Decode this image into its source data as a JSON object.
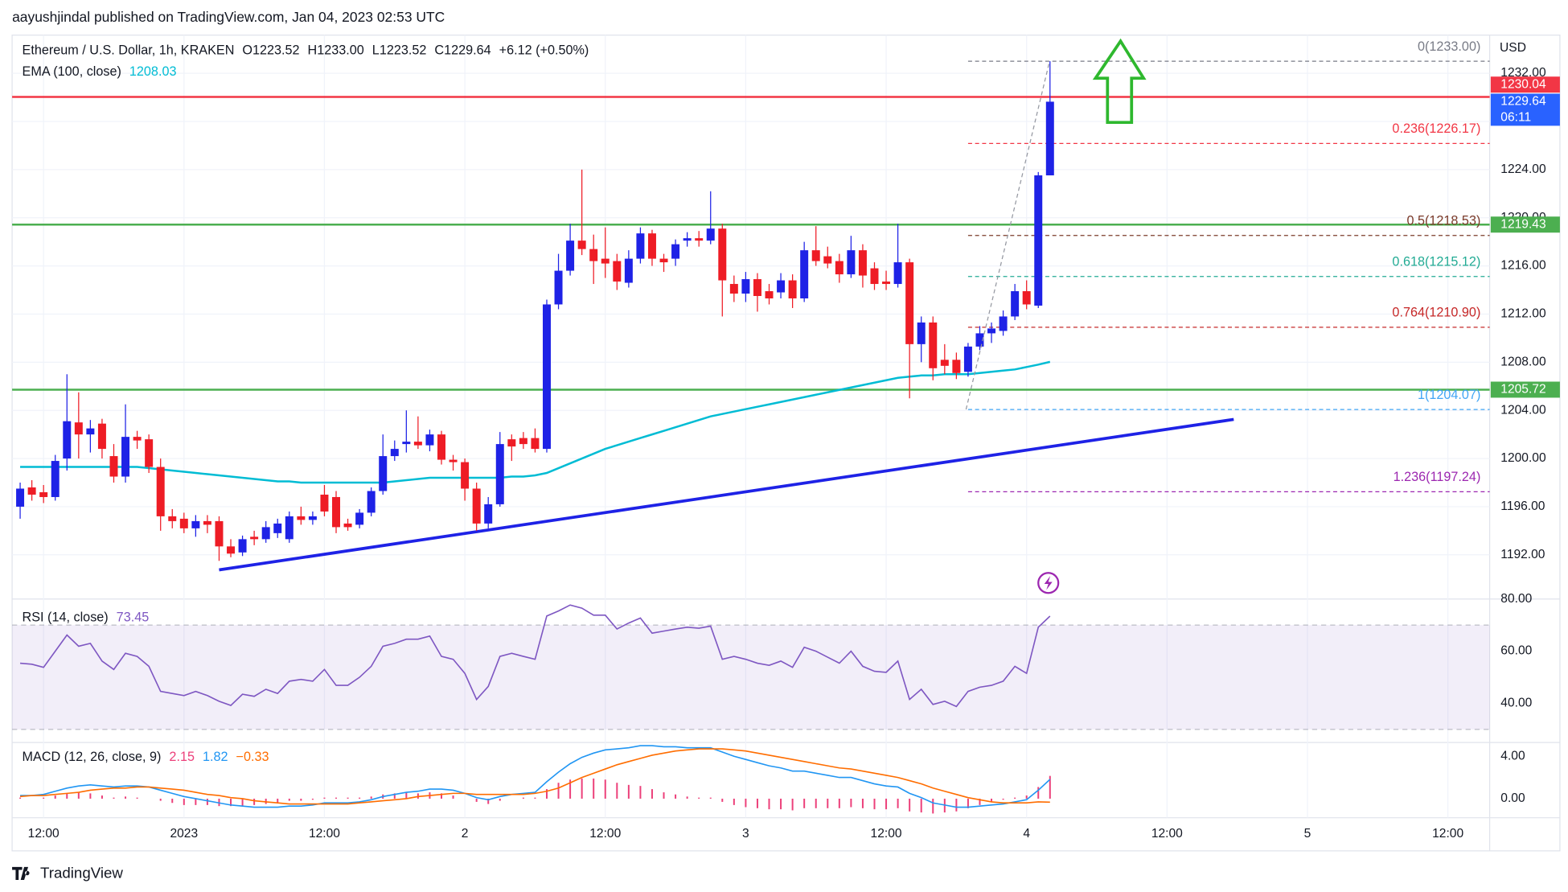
{
  "header": {
    "text": "aayushjindal published on TradingView.com, Jan 04, 2023 02:53 UTC"
  },
  "footer": {
    "brand": "TradingView"
  },
  "chart_data": {
    "type": "candlestick",
    "title": "Ethereum / U.S. Dollar, 1h, KRAKEN",
    "ohlc_legend": [
      "O1223.52",
      "H1233.00",
      "L1223.52",
      "C1229.64",
      "+6.12 (+0.50%)"
    ],
    "currency": "USD",
    "xlim": [
      -0.686,
      125.57
    ],
    "xticks": [
      {
        "value": 2,
        "label": "12:00"
      },
      {
        "value": 14,
        "label": "2023"
      },
      {
        "value": 26,
        "label": "12:00"
      },
      {
        "value": 38,
        "label": "2"
      },
      {
        "value": 50,
        "label": "12:00"
      },
      {
        "value": 62,
        "label": "3"
      },
      {
        "value": 74,
        "label": "12:00"
      },
      {
        "value": 86,
        "label": "4"
      },
      {
        "value": 98,
        "label": "12:00"
      },
      {
        "value": 110,
        "label": "5"
      },
      {
        "value": 122,
        "label": "12:00"
      }
    ],
    "ylim": [
      1188.33,
      1235.17
    ],
    "yticks": [
      {
        "value": 1192,
        "label": "1192.00"
      },
      {
        "value": 1196,
        "label": "1196.00"
      },
      {
        "value": 1200,
        "label": "1200.00"
      },
      {
        "value": 1204,
        "label": "1204.00"
      },
      {
        "value": 1208,
        "label": "1208.00"
      },
      {
        "value": 1212,
        "label": "1212.00"
      },
      {
        "value": 1216,
        "label": "1216.00"
      },
      {
        "value": 1220,
        "label": "1220.00"
      },
      {
        "value": 1224,
        "label": "1224.00"
      },
      {
        "value": 1228,
        "label": "1228.00"
      },
      {
        "value": 1232,
        "label": "1232.00"
      }
    ],
    "grid": true,
    "up_color": "#1e22e6",
    "down_color": "#ee1c25",
    "open": [
      1196,
      1197.6,
      1197.2,
      1196.8,
      1200,
      1203,
      1202,
      1202.9,
      1200.2,
      1198.5,
      1201.8,
      1201.6,
      1199.3,
      1195.2,
      1195,
      1194.2,
      1194.8,
      1194.8,
      1192.7,
      1192.2,
      1193.5,
      1193.3,
      1193.8,
      1193.3,
      1195.2,
      1194.9,
      1197,
      1196.8,
      1194.6,
      1194.5,
      1195.5,
      1197.3,
      1200.2,
      1201.2,
      1201.4,
      1201.1,
      1202,
      1199.9,
      1199.7,
      1197.5,
      1194.6,
      1196.2,
      1201.6,
      1201.7,
      1201.7,
      1200.8,
      1212.8,
      1215.6,
      1218.1,
      1217.4,
      1216.6,
      1216.4,
      1214.6,
      1216.6,
      1218.7,
      1216.6,
      1216.6,
      1218.1,
      1218.3,
      1218.1,
      1219.1,
      1214.5,
      1213.7,
      1214.9,
      1213.9,
      1213.8,
      1214.8,
      1213.3,
      1217.3,
      1216.8,
      1216.4,
      1215.3,
      1217.3,
      1215.8,
      1214.7,
      1214.5,
      1216.3,
      1209.5,
      1211.3,
      1208.2,
      1208.2,
      1207.2,
      1209.3,
      1210.4,
      1210.6,
      1211.8,
      1213.9,
      1212.7,
      1223.52
    ],
    "high": [
      1198,
      1198.2,
      1197.8,
      1200.3,
      1207,
      1205.5,
      1203.2,
      1203.3,
      1201.2,
      1204.5,
      1202.3,
      1202,
      1200,
      1195.8,
      1195.5,
      1195.3,
      1195.3,
      1195.2,
      1193.3,
      1193.6,
      1194,
      1194.8,
      1195,
      1195.6,
      1196,
      1195.6,
      1197.8,
      1197.3,
      1195,
      1195.8,
      1197.6,
      1202,
      1201.5,
      1204,
      1203.5,
      1202.4,
      1202.3,
      1200.3,
      1200,
      1198,
      1196.8,
      1202.2,
      1202,
      1202.2,
      1202.5,
      1213.2,
      1217,
      1219.5,
      1224,
      1218.6,
      1219.2,
      1217,
      1217.3,
      1219.2,
      1219,
      1217,
      1218.2,
      1218.8,
      1218.9,
      1222.2,
      1219.5,
      1215.2,
      1215.5,
      1215.4,
      1214.5,
      1215.4,
      1215.3,
      1218,
      1219.3,
      1217.6,
      1217,
      1218.5,
      1217.8,
      1216.3,
      1215.6,
      1219.5,
      1216.6,
      1211.8,
      1211.8,
      1209.5,
      1208.8,
      1209.6,
      1211,
      1211.3,
      1212.3,
      1214.5,
      1214.8,
      1223.8,
      1233
    ],
    "low": [
      1195,
      1196.5,
      1196.3,
      1196.5,
      1199,
      1200,
      1200.5,
      1200,
      1198,
      1198,
      1200.8,
      1198.8,
      1194,
      1194.2,
      1193.8,
      1193.5,
      1193.8,
      1191.5,
      1191.8,
      1191.9,
      1192.8,
      1193,
      1193.4,
      1193,
      1194.5,
      1194.5,
      1195.2,
      1193.8,
      1194,
      1194.2,
      1195.2,
      1197,
      1199.8,
      1200.5,
      1200.8,
      1200.6,
      1199.5,
      1199,
      1196.5,
      1194,
      1194.2,
      1196,
      1199.8,
      1200.8,
      1200.5,
      1200.5,
      1212.4,
      1215.2,
      1216.9,
      1214.5,
      1215,
      1214,
      1214.2,
      1216.2,
      1216,
      1215.5,
      1216,
      1217.6,
      1217.6,
      1217.8,
      1211.8,
      1213,
      1213,
      1212.2,
      1212.8,
      1213.3,
      1212.5,
      1213,
      1216,
      1215.8,
      1214.6,
      1215,
      1214.2,
      1214,
      1214,
      1214.2,
      1205,
      1208,
      1206.5,
      1207,
      1206.6,
      1206.8,
      1209,
      1209.6,
      1210.2,
      1211.5,
      1212.4,
      1212.5,
      1223.52
    ],
    "close": [
      1197.5,
      1197,
      1196.8,
      1199.8,
      1203.1,
      1202,
      1202.5,
      1200.8,
      1198.5,
      1201.8,
      1201.5,
      1199.3,
      1195.2,
      1194.8,
      1194.2,
      1194.8,
      1194.5,
      1192.7,
      1192.1,
      1193.3,
      1193.3,
      1194.3,
      1194.6,
      1195.2,
      1194.9,
      1195.2,
      1195.6,
      1194.3,
      1194.3,
      1195.5,
      1197.3,
      1200.2,
      1200.8,
      1201.4,
      1201.1,
      1202,
      1199.9,
      1199.7,
      1197.5,
      1194.6,
      1196.2,
      1201.2,
      1201,
      1201.2,
      1200.8,
      1212.8,
      1215.6,
      1218.1,
      1217.4,
      1216.4,
      1216.2,
      1214.7,
      1216.6,
      1218.7,
      1216.6,
      1216.3,
      1217.8,
      1218.3,
      1218.1,
      1219.1,
      1214.8,
      1213.7,
      1214.9,
      1213.5,
      1213.3,
      1214.8,
      1213.3,
      1217.3,
      1216.4,
      1216.2,
      1215.3,
      1217.3,
      1215.2,
      1214.5,
      1214.5,
      1216.3,
      1209.5,
      1211.3,
      1207.5,
      1207.7,
      1207.1,
      1209.3,
      1210.4,
      1210.8,
      1211.8,
      1213.9,
      1212.8,
      1223.52,
      1229.64
    ],
    "ema": {
      "name": "EMA (100, close)",
      "color": "#00bcd4",
      "values": [
        1199.3,
        1199.3,
        1199.3,
        1199.3,
        1199.3,
        1199.3,
        1199.3,
        1199.3,
        1199.3,
        1199.3,
        1199.3,
        1199.2,
        1199.1,
        1199.0,
        1198.9,
        1198.8,
        1198.7,
        1198.6,
        1198.5,
        1198.4,
        1198.3,
        1198.2,
        1198.1,
        1198.1,
        1198.0,
        1198.0,
        1198.0,
        1198.0,
        1198.0,
        1198.0,
        1198.0,
        1198.0,
        1198.1,
        1198.2,
        1198.3,
        1198.4,
        1198.4,
        1198.4,
        1198.4,
        1198.4,
        1198.4,
        1198.4,
        1198.5,
        1198.5,
        1198.6,
        1198.8,
        1199.2,
        1199.6,
        1200.0,
        1200.4,
        1200.8,
        1201.1,
        1201.4,
        1201.7,
        1202.0,
        1202.3,
        1202.6,
        1202.9,
        1203.2,
        1203.5,
        1203.7,
        1203.9,
        1204.1,
        1204.3,
        1204.5,
        1204.7,
        1204.9,
        1205.1,
        1205.3,
        1205.5,
        1205.7,
        1205.9,
        1206.1,
        1206.3,
        1206.5,
        1206.7,
        1206.8,
        1206.9,
        1206.9,
        1207.0,
        1207.0,
        1207.0,
        1207.1,
        1207.2,
        1207.3,
        1207.4,
        1207.6,
        1207.8,
        1208.03
      ]
    },
    "price_lines": [
      {
        "value": 1230.04,
        "color": "#f23645"
      },
      {
        "value": 1219.43,
        "color": "#4caf50"
      },
      {
        "value": 1205.72,
        "color": "#4caf50"
      }
    ],
    "last_price": {
      "value": 1229.64,
      "countdown": "06:11",
      "color": "#2962ff"
    },
    "fib": {
      "from_index": 81,
      "levels": [
        {
          "label": "0(1233.00)",
          "value": 1233,
          "color": "#787b86"
        },
        {
          "label": "0.236(1226.17)",
          "value": 1226.17,
          "color": "#f23645"
        },
        {
          "label": "0.5(1218.53)",
          "value": 1218.53,
          "color": "#7b3b2a"
        },
        {
          "label": "0.618(1215.12)",
          "value": 1215.12,
          "color": "#22ab94"
        },
        {
          "label": "0.764(1210.90)",
          "value": 1210.9,
          "color": "#c62828"
        },
        {
          "label": "1(1204.07)",
          "value": 1204.07,
          "color": "#42a5f5"
        },
        {
          "label": "1.236(1197.24)",
          "value": 1197.24,
          "color": "#9c27b0"
        }
      ]
    },
    "trendline": {
      "points": [
        [
          17,
          1190.75
        ],
        [
          103.7,
          1203.25
        ]
      ],
      "color": "#1e22e6"
    },
    "rsi": {
      "name": "RSI (14, close)",
      "color": "#7e57c2",
      "ylim": [
        25,
        80
      ],
      "band": [
        30,
        70
      ],
      "yticks": [
        {
          "value": 40,
          "label": "40.00"
        },
        {
          "value": 60,
          "label": "60.00"
        },
        {
          "value": 80,
          "label": "80.00"
        }
      ],
      "values": [
        55.4,
        55,
        53.8,
        60,
        66.2,
        61.9,
        63,
        56.2,
        53,
        59.2,
        58,
        54.2,
        44.6,
        43.8,
        43,
        44.6,
        43,
        40.8,
        39.2,
        43.5,
        42.7,
        45.4,
        43.8,
        48.5,
        49.2,
        48.5,
        53,
        46.9,
        46.9,
        50,
        54.2,
        61.9,
        63,
        64.6,
        64.6,
        65.8,
        58,
        56.9,
        51.5,
        41.5,
        46.5,
        58,
        59.2,
        58,
        56.9,
        73.5,
        75.4,
        77.7,
        76.5,
        73.8,
        73.8,
        68.5,
        70.8,
        72.7,
        66.9,
        67.7,
        68.5,
        69.2,
        68.8,
        69.6,
        56.9,
        58,
        56.9,
        55.4,
        54.6,
        56.2,
        53.8,
        61.5,
        60,
        57.7,
        55.4,
        60,
        54.2,
        52.3,
        51.9,
        56.2,
        41.5,
        45.4,
        39.6,
        40.8,
        38.8,
        44.6,
        46.2,
        46.9,
        48.5,
        54.2,
        51.5,
        69.2,
        73.45
      ]
    },
    "macd": {
      "name": "MACD (12, 26, close, 9)",
      "ylim": [
        -1.8,
        5.3
      ],
      "yticks": [
        {
          "value": 0,
          "label": "0.00"
        },
        {
          "value": 4,
          "label": "4.00"
        }
      ],
      "histogram": {
        "color": "#ec407a",
        "values": [
          0.1,
          0.0,
          0.1,
          0.3,
          0.5,
          0.6,
          0.5,
          0.3,
          0.1,
          0.2,
          0.1,
          0.0,
          -0.2,
          -0.4,
          -0.6,
          -0.6,
          -0.6,
          -0.7,
          -0.7,
          -0.7,
          -0.6,
          -0.5,
          -0.4,
          -0.2,
          -0.2,
          -0.1,
          0.1,
          0.1,
          0.1,
          0.1,
          0.2,
          0.4,
          0.5,
          0.6,
          0.5,
          0.6,
          0.5,
          0.3,
          0.0,
          -0.3,
          -0.5,
          -0.2,
          0.0,
          0.1,
          0.1,
          0.9,
          1.5,
          1.8,
          1.9,
          1.9,
          1.8,
          1.5,
          1.3,
          1.2,
          0.9,
          0.6,
          0.4,
          0.2,
          0.1,
          0.1,
          -0.3,
          -0.6,
          -0.8,
          -0.9,
          -1.0,
          -1.0,
          -1.1,
          -0.9,
          -0.9,
          -0.9,
          -0.9,
          -0.8,
          -0.9,
          -1.0,
          -1.0,
          -0.9,
          -1.2,
          -1.3,
          -1.4,
          -1.3,
          -1.2,
          -0.9,
          -0.6,
          -0.3,
          -0.1,
          0.1,
          0.3,
          1.1,
          2.15
        ]
      },
      "macd": {
        "color": "#2196f3",
        "values": [
          0.3,
          0.3,
          0.4,
          0.7,
          1.0,
          1.2,
          1.3,
          1.2,
          1.1,
          1.2,
          1.2,
          1.1,
          0.8,
          0.5,
          0.2,
          0.0,
          -0.2,
          -0.4,
          -0.6,
          -0.7,
          -0.8,
          -0.8,
          -0.8,
          -0.7,
          -0.7,
          -0.6,
          -0.4,
          -0.4,
          -0.4,
          -0.3,
          -0.1,
          0.2,
          0.4,
          0.6,
          0.7,
          0.9,
          0.9,
          0.8,
          0.5,
          0.1,
          -0.1,
          0.2,
          0.4,
          0.5,
          0.6,
          1.6,
          2.5,
          3.3,
          3.9,
          4.3,
          4.6,
          4.7,
          4.8,
          5.0,
          5.0,
          4.9,
          4.9,
          4.8,
          4.8,
          4.8,
          4.4,
          4.0,
          3.7,
          3.4,
          3.1,
          2.9,
          2.6,
          2.6,
          2.4,
          2.2,
          2.0,
          2.0,
          1.7,
          1.4,
          1.2,
          1.1,
          0.5,
          0.1,
          -0.4,
          -0.6,
          -0.8,
          -0.8,
          -0.7,
          -0.6,
          -0.5,
          -0.3,
          -0.1,
          0.8,
          1.82
        ]
      },
      "signal": {
        "color": "#ff6d00",
        "legend_label": "−0.33",
        "values": [
          0.2,
          0.3,
          0.3,
          0.4,
          0.5,
          0.6,
          0.8,
          0.9,
          1.0,
          1.0,
          1.1,
          1.1,
          1.0,
          0.9,
          0.8,
          0.6,
          0.4,
          0.3,
          0.1,
          0.0,
          -0.2,
          -0.3,
          -0.4,
          -0.5,
          -0.5,
          -0.5,
          -0.5,
          -0.5,
          -0.5,
          -0.4,
          -0.3,
          -0.2,
          -0.1,
          0.0,
          0.2,
          0.3,
          0.4,
          0.5,
          0.5,
          0.4,
          0.4,
          0.4,
          0.4,
          0.4,
          0.5,
          0.7,
          1.0,
          1.5,
          2.0,
          2.4,
          2.8,
          3.2,
          3.5,
          3.8,
          4.1,
          4.3,
          4.5,
          4.6,
          4.7,
          4.7,
          4.7,
          4.6,
          4.5,
          4.3,
          4.1,
          3.9,
          3.7,
          3.5,
          3.3,
          3.1,
          2.9,
          2.8,
          2.6,
          2.4,
          2.2,
          2.0,
          1.7,
          1.4,
          1.0,
          0.7,
          0.4,
          0.1,
          -0.1,
          -0.3,
          -0.4,
          -0.4,
          -0.4,
          -0.3,
          -0.33
        ]
      }
    }
  }
}
